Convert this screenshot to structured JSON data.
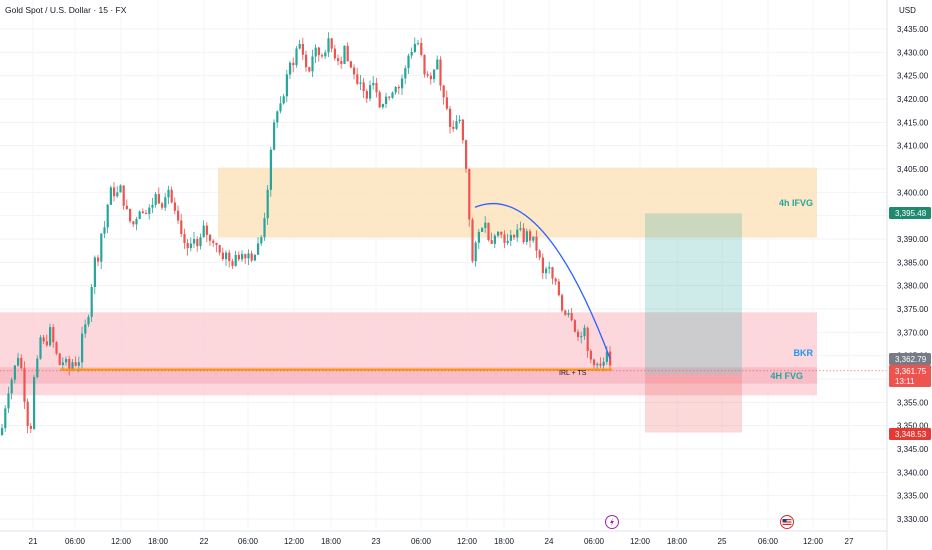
{
  "header": {
    "symbol_title": "Gold Spot / U.S. Dollar · 15 · FX",
    "currency": "USD"
  },
  "colors": {
    "up": "#26a69a",
    "down": "#ef5350",
    "ifvg_zone": "#fbe3bd",
    "fvg_zone": "#fbd0d6",
    "curve": "#2962ff",
    "ray": "#ff9800",
    "label_teal": "#26a69a",
    "label_bkr": "#2196f3"
  },
  "labels": {
    "ifvg": "4h IFVG",
    "bkr": "BKR",
    "fvg4h": "4H FVG",
    "irl": "IRL + TS"
  },
  "price_tags": {
    "target": "3,395.48",
    "prev": "3,362.79",
    "last": "3,361.75",
    "countdown": "13:11",
    "stop": "3,348.53"
  },
  "event_icons": [
    "lightning-icon",
    "us-flag-icon"
  ],
  "chart_data": {
    "type": "candlestick",
    "title": "Gold Spot / U.S. Dollar · 15 · FX",
    "ylabel": "USD",
    "ylim": [
      3327.5,
      3439
    ],
    "y_ticks": [
      "3,330.00",
      "3,335.00",
      "3,340.00",
      "3,345.00",
      "3,350.00",
      "3,355.00",
      "3,360.00",
      "3,365.00",
      "3,370.00",
      "3,375.00",
      "3,380.00",
      "3,385.00",
      "3,390.00",
      "3,395.00",
      "3,400.00",
      "3,405.00",
      "3,410.00",
      "3,415.00",
      "3,420.00",
      "3,425.00",
      "3,430.00",
      "3,435.00"
    ],
    "x_ticks": [
      "21",
      "06:00",
      "12:00",
      "18:00",
      "22",
      "06:00",
      "12:00",
      "18:00",
      "23",
      "06:00",
      "12:00",
      "18:00",
      "24",
      "06:00",
      "12:00",
      "18:00",
      "25",
      "06:00",
      "12:00",
      "27"
    ],
    "price_path": [
      [
        0,
        3348
      ],
      [
        6,
        3357
      ],
      [
        12,
        3361
      ],
      [
        18,
        3366
      ],
      [
        22,
        3359
      ],
      [
        26,
        3351
      ],
      [
        30,
        3350
      ],
      [
        33,
        3360
      ],
      [
        37,
        3364
      ],
      [
        40,
        3370
      ],
      [
        44,
        3366
      ],
      [
        48,
        3371
      ],
      [
        53,
        3367
      ],
      [
        58,
        3363
      ],
      [
        63,
        3364
      ],
      [
        68,
        3362
      ],
      [
        72,
        3364
      ],
      [
        77,
        3363
      ],
      [
        82,
        3370
      ],
      [
        86,
        3372
      ],
      [
        90,
        3379
      ],
      [
        93,
        3386
      ],
      [
        96,
        3384
      ],
      [
        99,
        3391
      ],
      [
        103,
        3392
      ],
      [
        107,
        3398
      ],
      [
        111,
        3401
      ],
      [
        115,
        3399
      ],
      [
        119,
        3401
      ],
      [
        124,
        3397
      ],
      [
        128,
        3394
      ],
      [
        133,
        3393
      ],
      [
        138,
        3397
      ],
      [
        143,
        3395
      ],
      [
        148,
        3396
      ],
      [
        152,
        3398
      ],
      [
        156,
        3400
      ],
      [
        160,
        3397
      ],
      [
        164,
        3400
      ],
      [
        168,
        3401
      ],
      [
        172,
        3396
      ],
      [
        176,
        3394
      ],
      [
        180,
        3390
      ],
      [
        184,
        3389
      ],
      [
        188,
        3386
      ],
      [
        192,
        3392
      ],
      [
        196,
        3388
      ],
      [
        200,
        3390
      ],
      [
        204,
        3393
      ],
      [
        208,
        3389
      ],
      [
        212,
        3390
      ],
      [
        216,
        3389
      ],
      [
        220,
        3386
      ],
      [
        224,
        3387
      ],
      [
        228,
        3385
      ],
      [
        232,
        3385
      ],
      [
        236,
        3386
      ],
      [
        240,
        3387
      ],
      [
        244,
        3387
      ],
      [
        248,
        3387
      ],
      [
        252,
        3386
      ],
      [
        256,
        3388
      ],
      [
        260,
        3390
      ],
      [
        264,
        3396
      ],
      [
        268,
        3404
      ],
      [
        272,
        3413
      ],
      [
        276,
        3418
      ],
      [
        280,
        3419
      ],
      [
        284,
        3422
      ],
      [
        288,
        3427
      ],
      [
        292,
        3428
      ],
      [
        296,
        3431
      ],
      [
        300,
        3432
      ],
      [
        304,
        3427
      ],
      [
        308,
        3426
      ],
      [
        312,
        3430
      ],
      [
        316,
        3430
      ],
      [
        320,
        3429
      ],
      [
        324,
        3431
      ],
      [
        328,
        3432
      ],
      [
        332,
        3430
      ],
      [
        336,
        3429
      ],
      [
        340,
        3428
      ],
      [
        344,
        3432
      ],
      [
        348,
        3426
      ],
      [
        352,
        3427
      ],
      [
        356,
        3422
      ],
      [
        360,
        3425
      ],
      [
        364,
        3419
      ],
      [
        368,
        3424
      ],
      [
        372,
        3424
      ],
      [
        376,
        3422
      ],
      [
        380,
        3418
      ],
      [
        384,
        3421
      ],
      [
        388,
        3419
      ],
      [
        392,
        3423
      ],
      [
        396,
        3423
      ],
      [
        400,
        3424
      ],
      [
        404,
        3426
      ],
      [
        408,
        3430
      ],
      [
        412,
        3431
      ],
      [
        416,
        3433
      ],
      [
        420,
        3429
      ],
      [
        424,
        3424
      ],
      [
        428,
        3425
      ],
      [
        432,
        3426
      ],
      [
        436,
        3429
      ],
      [
        440,
        3421
      ],
      [
        444,
        3419
      ],
      [
        448,
        3415
      ],
      [
        452,
        3413
      ],
      [
        456,
        3416
      ],
      [
        460,
        3414
      ],
      [
        464,
        3407
      ],
      [
        467,
        3402
      ],
      [
        470,
        3384
      ],
      [
        473,
        3386
      ],
      [
        476,
        3390
      ],
      [
        479,
        3392
      ],
      [
        482,
        3394
      ],
      [
        486,
        3392
      ],
      [
        490,
        3389
      ],
      [
        494,
        3392
      ],
      [
        498,
        3391
      ],
      [
        502,
        3391
      ],
      [
        506,
        3389
      ],
      [
        510,
        3390
      ],
      [
        514,
        3392
      ],
      [
        518,
        3392
      ],
      [
        522,
        3390
      ],
      [
        526,
        3391
      ],
      [
        530,
        3390
      ],
      [
        534,
        3389
      ],
      [
        538,
        3386
      ],
      [
        542,
        3382
      ],
      [
        546,
        3384
      ],
      [
        550,
        3382
      ],
      [
        554,
        3380
      ],
      [
        558,
        3378
      ],
      [
        562,
        3374
      ],
      [
        566,
        3375
      ],
      [
        570,
        3374
      ],
      [
        574,
        3371
      ],
      [
        578,
        3368
      ],
      [
        582,
        3372
      ],
      [
        586,
        3366
      ],
      [
        590,
        3364
      ],
      [
        594,
        3364
      ],
      [
        598,
        3362
      ],
      [
        602,
        3363
      ],
      [
        606,
        3365
      ],
      [
        608,
        3362
      ],
      [
        610,
        3362
      ]
    ],
    "zones": [
      {
        "name": "4h IFVG",
        "x0": 218,
        "x1": 817,
        "y0": 3390.3,
        "y1": 3405.3,
        "color": "#fbe3bd"
      },
      {
        "name": "4H FVG",
        "x0": 0,
        "x1": 817,
        "y0": 3356.5,
        "y1": 3374.3,
        "color": "#fbd0d6"
      },
      {
        "name": "4H FVG inner",
        "x0": 0,
        "x1": 817,
        "y0": 3359.0,
        "y1": 3362.5,
        "color": "#f8b9c3"
      }
    ],
    "position": {
      "x0": 645,
      "x1": 742,
      "entry": 3361.0,
      "target": 3395.48,
      "stop": 3348.53
    },
    "levels": {
      "bkr": 3362.0,
      "last_price": 3361.75
    },
    "curve": {
      "x0": 475,
      "x1": 610,
      "y_start": 3396.8,
      "y_peak": 3397.6,
      "y_end": 3364.4
    }
  }
}
